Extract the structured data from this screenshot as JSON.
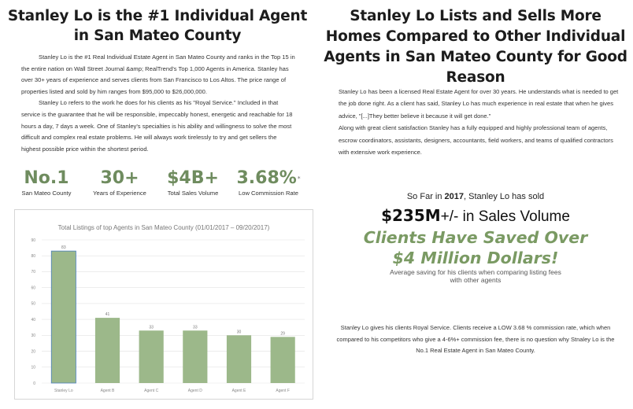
{
  "left": {
    "heading": "Stanley Lo is the #1 Individual Agent in San Mateo County",
    "paragraphs": [
      "Stanley Lo is the #1 Real Individual Estate Agent in San Mateo County and ranks in the Top 15 in the entire nation on Wall Street Journal &amp; RealTrend's Top 1,000 Agents in America. Stanley has over 30+ years of experience and serves clients from San Francisco to Los Altos. The price range of properties listed and sold by him ranges from $95,000 to $26,000,000.",
      "Stanley Lo refers to the work he does for his clients as his \"Royal Service.\" Included in that service is the guarantee that he will be responsible, impeccably honest, energetic and reachable for 18 hours a day, 7 days a week. One of Stanley's specialties is his ability and willingness to solve the most difficult and complex real estate problems. He will always work tirelessly to try and get sellers the highest possible price within the shortest period."
    ],
    "stats": [
      {
        "value": "No.1",
        "label": "San Mateo County"
      },
      {
        "value": "30+",
        "label": "Years of Experience"
      },
      {
        "value": "$4B+",
        "label": "Total Sales Volume"
      },
      {
        "value": "3.68%",
        "marker": "*",
        "label": "Low Commission Rate"
      }
    ]
  },
  "chart_data": {
    "type": "bar",
    "title": "Total Listings of top Agents in San Mateo County    (01/01/2017  –  09/20/2017)",
    "categories": [
      "Stanley Lo",
      "Agent B",
      "Agent C",
      "Agent D",
      "Agent E",
      "Agent F"
    ],
    "values": [
      83,
      41,
      33,
      33,
      30,
      29
    ],
    "value_labels": [
      "83",
      "41",
      "33",
      "33",
      "30",
      "29"
    ],
    "ylim": [
      0,
      90
    ],
    "yticks": [
      0,
      10,
      20,
      30,
      40,
      50,
      60,
      70,
      80,
      90
    ],
    "grid": true,
    "bar_color": "#9cb88a",
    "highlight_color": "#4a7fbf"
  },
  "right": {
    "heading": "Stanley Lo Lists and Sells More Homes Compared to Other Individual Agents in San Mateo County for Good Reason",
    "paragraphs": [
      "Stanley Lo has been a licensed Real Estate Agent for over 30 years. He understands what is needed to get the job done right. As a client has said, Stanley Lo has much experience in real estate that when he gives advice, \"[...]They better believe it because it will get done.\"",
      "Along with great client satisfaction Stanley has a fully equipped and highly professional team of  agents, escrow coordinators, assistants, designers, accountants, field workers, and teams of qualified contractors with extensive work experience."
    ],
    "sofar_prefix": "So Far in ",
    "sofar_year": "2017",
    "sofar_suffix": ", Stanley Lo has sold",
    "sales_amount": "$235M",
    "sales_suffix": "+/- in Sales Volume",
    "saved_line1": "Clients Have Saved Over",
    "saved_line2": "$4 Million Dollars!",
    "avg_note": "Average saving for his clients when comparing listing fees with other agents",
    "royal": "Stanley Lo gives his clients Royal Service. Clients receive a LOW 3.68 % commission rate, which when compared to his competitors who give a 4-6%+ commission fee, there is no question why Stnaley Lo is the No.1 Real Estate Agent in San Mateo County."
  },
  "colors": {
    "accent_green": "#6f8c5f",
    "saved_green": "#7a9a63"
  }
}
